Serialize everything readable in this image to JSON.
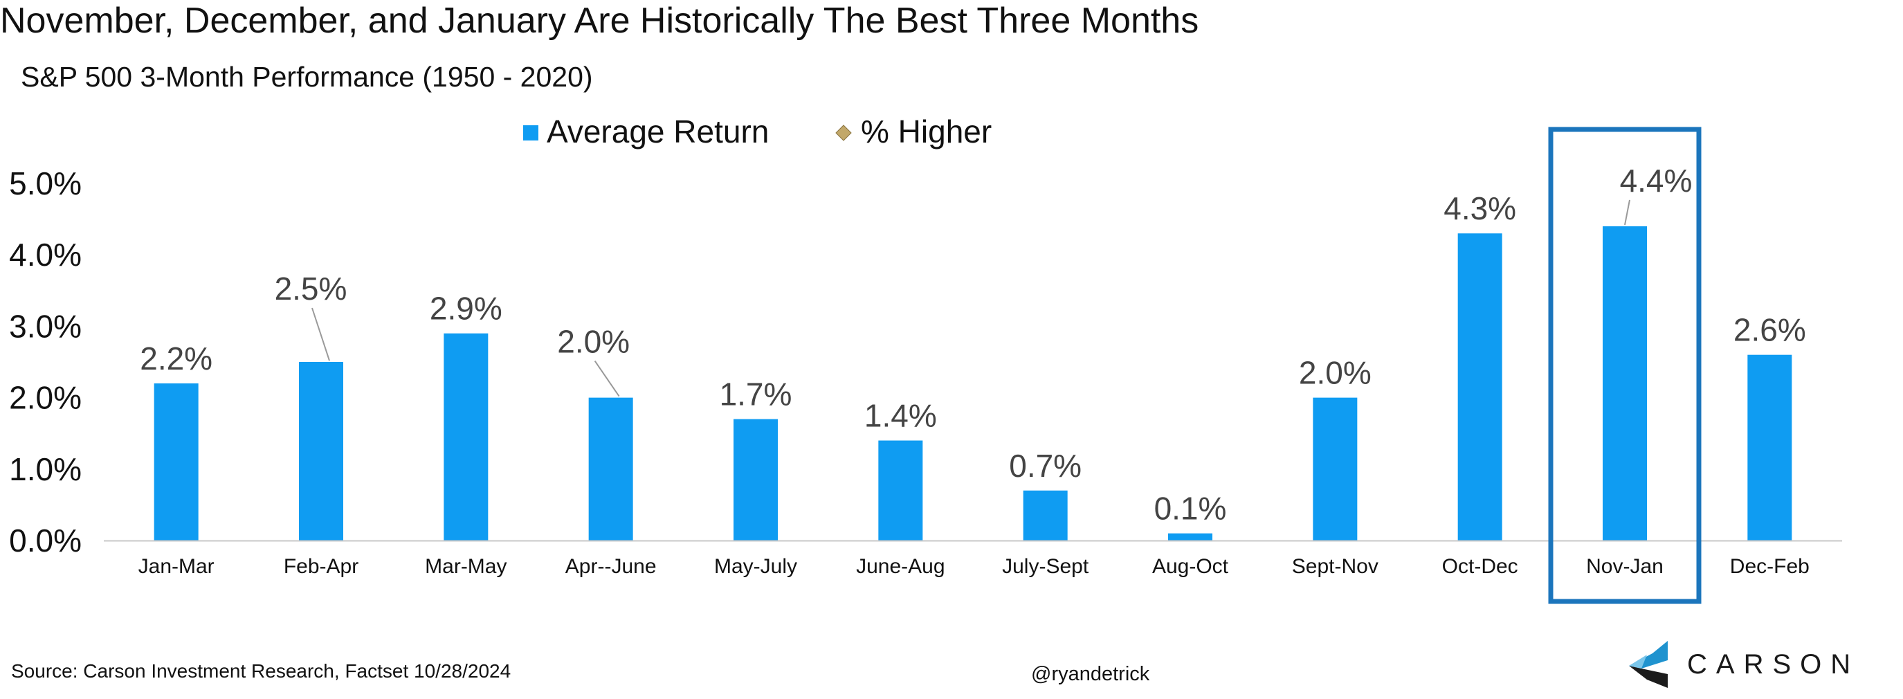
{
  "chart_data": {
    "type": "bar",
    "title": "November, December, and January Are Historically The Best Three Months",
    "subtitle": "S&P 500 3-Month Performance (1950 - 2020)",
    "legend": [
      {
        "name": "Average Return",
        "marker": "square",
        "color": "#0f9cf2"
      },
      {
        "name": "% Higher",
        "marker": "diamond",
        "color": "#c2a86a"
      }
    ],
    "legend_position": "top-center",
    "categories": [
      "Jan-Mar",
      "Feb-Apr",
      "Mar-May",
      "Apr--June",
      "May-July",
      "June-Aug",
      "July-Sept",
      "Aug-Oct",
      "Sept-Nov",
      "Oct-Dec",
      "Nov-Jan",
      "Dec-Feb"
    ],
    "series": [
      {
        "name": "Average Return",
        "values": [
          2.2,
          2.5,
          2.9,
          2.0,
          1.7,
          1.4,
          0.7,
          0.1,
          2.0,
          4.3,
          4.4,
          2.6
        ],
        "labels": [
          "2.2%",
          "2.5%",
          "2.9%",
          "2.0%",
          "1.7%",
          "1.4%",
          "0.7%",
          "0.1%",
          "2.0%",
          "4.3%",
          "4.4%",
          "2.6%"
        ]
      }
    ],
    "yticks": [
      "0.0%",
      "1.0%",
      "2.0%",
      "3.0%",
      "4.0%",
      "5.0%"
    ],
    "ylim": [
      0,
      5
    ],
    "grid": false,
    "highlight": {
      "category": "Nov-Jan",
      "style": "box outline"
    }
  },
  "footer": {
    "source": "Source: Carson Investment Research, Factset 10/28/2024",
    "handle": "@ryandetrick",
    "logo_text": "CARSON"
  },
  "colors": {
    "bar": "#0f9cf2",
    "highlight_box": "#1b75bc",
    "axis": "#c8c8c8",
    "text": "#111111"
  }
}
